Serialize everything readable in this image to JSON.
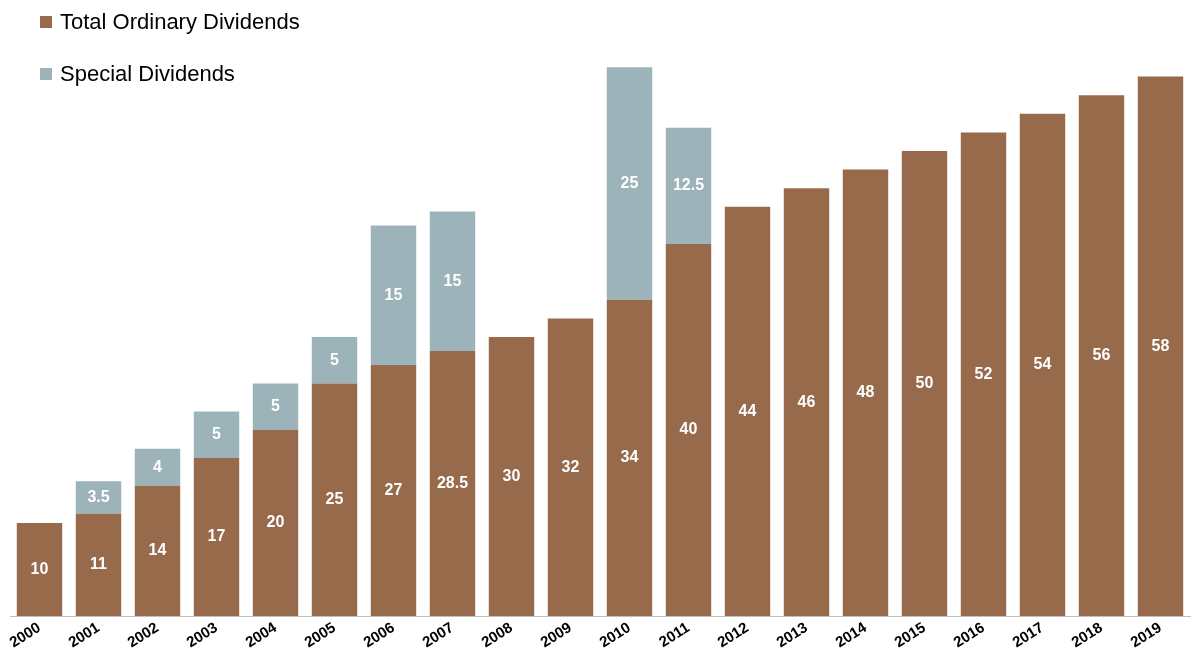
{
  "chart_data": {
    "type": "bar",
    "stacked": true,
    "data_labels": true,
    "legend": "top left",
    "grid": false,
    "categories": [
      "2000",
      "2001",
      "2002",
      "2003",
      "2004",
      "2005",
      "2006",
      "2007",
      "2008",
      "2009",
      "2010",
      "2011",
      "2012",
      "2013",
      "2014",
      "2015",
      "2016",
      "2017",
      "2018",
      "2019"
    ],
    "series": [
      {
        "name": "Total Ordinary Dividends",
        "color": "#976a4c",
        "values": [
          10,
          11,
          14,
          17,
          20,
          25,
          27,
          28.5,
          30,
          32,
          34,
          40,
          44,
          46,
          48,
          50,
          52,
          54,
          56,
          58
        ]
      },
      {
        "name": "Special Dividends",
        "color": "#9bb3b9",
        "values": [
          null,
          3.5,
          4,
          5,
          5,
          5,
          15,
          15,
          null,
          null,
          25,
          12.5,
          null,
          null,
          null,
          null,
          null,
          null,
          null,
          null
        ]
      }
    ]
  }
}
